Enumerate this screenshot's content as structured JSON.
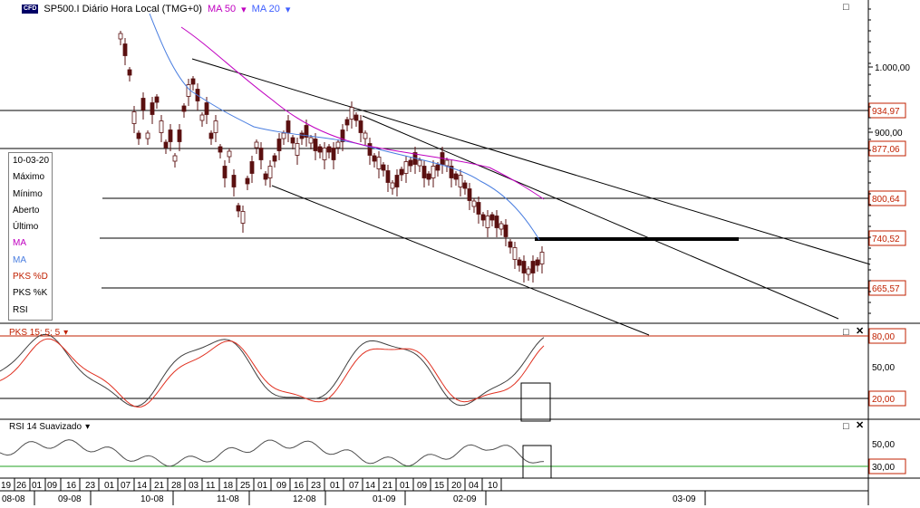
{
  "header": {
    "badge": "CFD",
    "symbol": "SP500.I Diário Hora Local (TMG+0)",
    "ma50": "MA 50",
    "ma20": "MA 20"
  },
  "colors": {
    "ma50": "#c000c0",
    "ma20": "#4a7ee0",
    "pks_d": "#e03020",
    "pks_k": "#404040",
    "level_box": "#c02000",
    "rsi_line": "#20a020"
  },
  "info_box": [
    "10-03-20",
    "Máximo",
    "Mínimo",
    "Aberto",
    "Último",
    "MA",
    "MA",
    "PKS %D",
    "PKS %K",
    "RSI"
  ],
  "price_axis": {
    "ticks": [
      "1.000,00",
      "900,00"
    ],
    "levels": [
      "934,97",
      "877,06",
      "800,64",
      "740,52",
      "665,57"
    ]
  },
  "pks": {
    "label": "PKS 15; 5; 5",
    "ticks": [
      "80,00",
      "50,00",
      "20,00"
    ]
  },
  "rsi": {
    "label": "RSI 14 Suavizado",
    "ticks": [
      "50,00",
      "30,00"
    ]
  },
  "date_axis": {
    "days": [
      "19",
      "26",
      "01",
      "09",
      "16",
      "23",
      "01",
      "07",
      "14",
      "21",
      "28",
      "03",
      "11",
      "18",
      "25",
      "01",
      "09",
      "16",
      "23",
      "01",
      "07",
      "14",
      "21",
      "01",
      "09",
      "15",
      "20",
      "04",
      "10"
    ],
    "months": [
      "08-08",
      "09-08",
      "10-08",
      "11-08",
      "12-08",
      "01-09",
      "02-09",
      "03-09"
    ]
  },
  "icons": {
    "maximize": "maximize-icon",
    "close": "close-icon",
    "dropdown": "dropdown-arrow-icon"
  }
}
